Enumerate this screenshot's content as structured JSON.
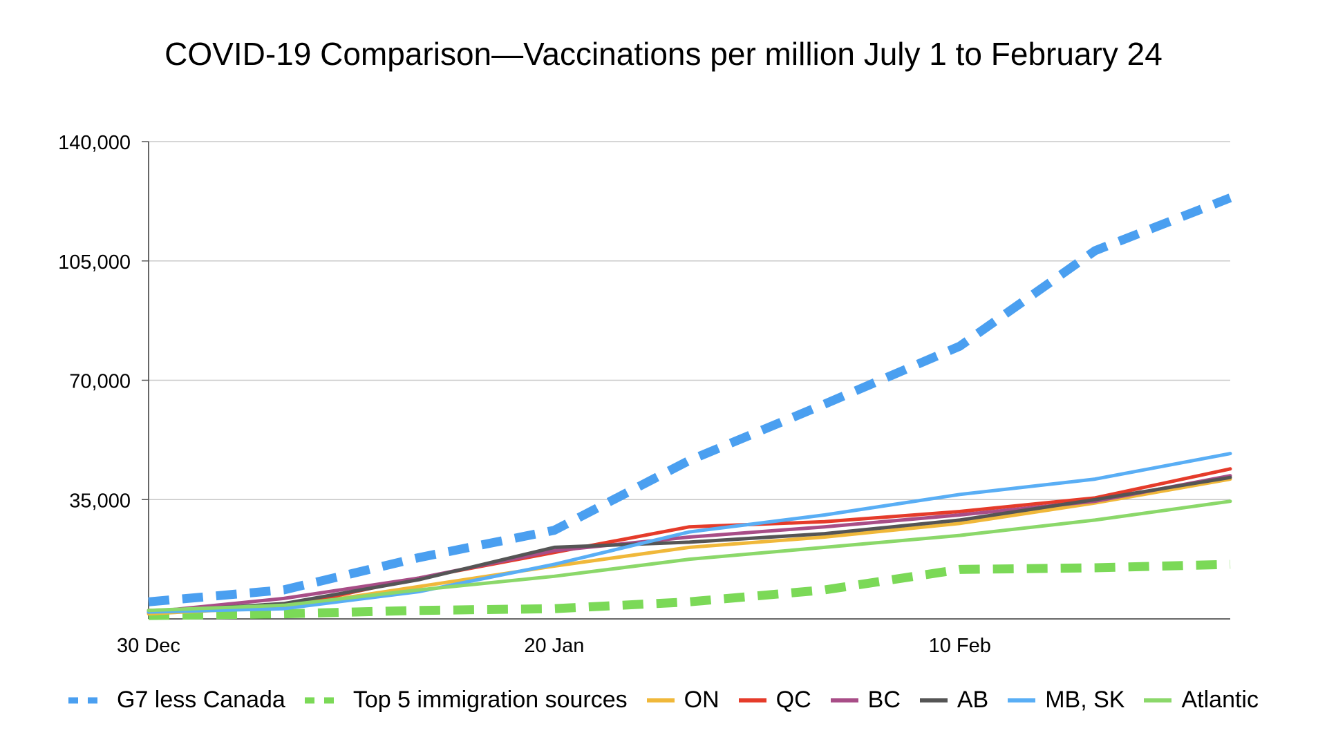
{
  "title": "COVID-19 Comparison—Vaccinations per million July 1 to February 24",
  "chart_data": {
    "type": "line",
    "title": "COVID-19 Comparison—Vaccinations per million July 1 to February 24",
    "xlabel": "",
    "ylabel": "",
    "x": [
      "30 Dec",
      "6 Jan",
      "13 Jan",
      "20 Jan",
      "27 Jan",
      "3 Feb",
      "10 Feb",
      "17 Feb",
      "24 Feb"
    ],
    "x_tick_labels": [
      "30 Dec",
      "20 Jan",
      "10 Feb"
    ],
    "ylim": [
      0,
      140000
    ],
    "y_ticks": [
      0,
      35000,
      70000,
      105000,
      140000
    ],
    "y_tick_labels": [
      "",
      "35,000",
      "70,000",
      "105,000",
      "140,000"
    ],
    "grid": true,
    "legend_position": "bottom",
    "series": [
      {
        "name": "G7 less Canada",
        "color": "#4a9ff0",
        "dash": "dashed",
        "width": "thick",
        "values": [
          5000,
          8500,
          18000,
          26000,
          46500,
          63000,
          80000,
          108000,
          123500
        ]
      },
      {
        "name": "Top 5 immigration sources",
        "color": "#7bd957",
        "dash": "dashed",
        "width": "thick",
        "values": [
          1000,
          1500,
          2500,
          3000,
          5000,
          8500,
          14500,
          15000,
          16000
        ]
      },
      {
        "name": "ON",
        "color": "#f0b83a",
        "dash": "solid",
        "width": "normal",
        "values": [
          1500,
          3500,
          9500,
          15500,
          21000,
          24000,
          28000,
          34000,
          41000
        ]
      },
      {
        "name": "QC",
        "color": "#e53b2a",
        "dash": "solid",
        "width": "normal",
        "values": [
          2500,
          3500,
          12000,
          19500,
          27000,
          28500,
          31500,
          35500,
          44000
        ]
      },
      {
        "name": "BC",
        "color": "#a84d87",
        "dash": "solid",
        "width": "normal",
        "values": [
          2000,
          6000,
          12000,
          20000,
          24000,
          27000,
          30500,
          34500,
          42000
        ]
      },
      {
        "name": "AB",
        "color": "#555555",
        "dash": "solid",
        "width": "normal",
        "values": [
          2000,
          4500,
          11500,
          21000,
          22500,
          25000,
          29000,
          35000,
          41500
        ]
      },
      {
        "name": "MB, SK",
        "color": "#59aef5",
        "dash": "solid",
        "width": "normal",
        "values": [
          2000,
          3000,
          8000,
          16000,
          25500,
          30500,
          36500,
          41000,
          48500
        ]
      },
      {
        "name": "Atlantic",
        "color": "#8bd86a",
        "dash": "solid",
        "width": "normal",
        "values": [
          2500,
          4000,
          8500,
          12500,
          17500,
          21000,
          24500,
          29000,
          34500
        ]
      }
    ]
  }
}
